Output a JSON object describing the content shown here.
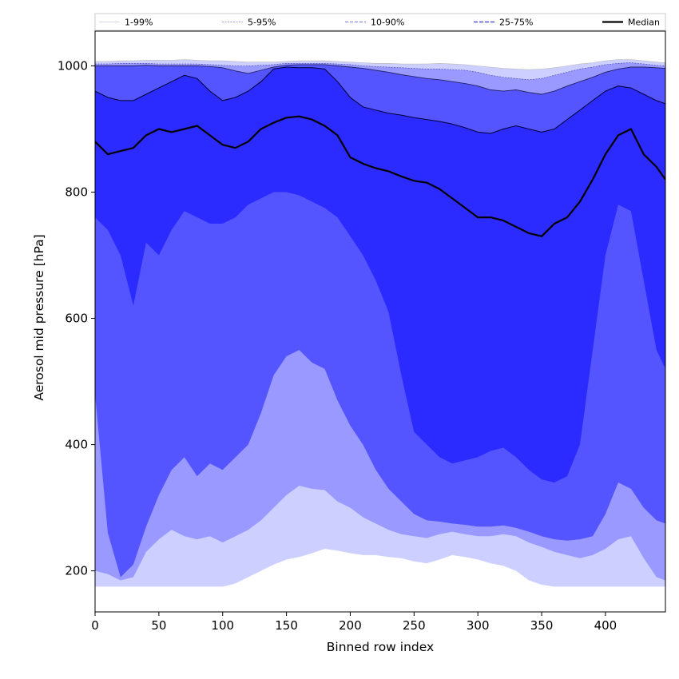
{
  "chart_data": {
    "type": "area",
    "xlabel": "Binned row index",
    "ylabel": "Aerosol mid pressure [hPa]",
    "xlim": [
      0,
      447
    ],
    "ylim": [
      135,
      1055
    ],
    "x_ticks": [
      0,
      50,
      100,
      150,
      200,
      250,
      300,
      350,
      400
    ],
    "y_ticks": [
      200,
      400,
      600,
      800,
      1000
    ],
    "grid": false,
    "legend_position": "top",
    "x": [
      0,
      10,
      20,
      30,
      40,
      50,
      60,
      70,
      80,
      90,
      100,
      110,
      120,
      130,
      140,
      150,
      160,
      170,
      180,
      190,
      200,
      210,
      220,
      230,
      240,
      250,
      260,
      270,
      280,
      290,
      300,
      310,
      320,
      330,
      340,
      350,
      360,
      370,
      380,
      390,
      400,
      410,
      420,
      430,
      440,
      447
    ],
    "series": [
      {
        "name": "1-99%",
        "color": "#cccfff",
        "lower": [
          175,
          175,
          175,
          175,
          175,
          175,
          175,
          175,
          175,
          175,
          175,
          180,
          190,
          200,
          210,
          218,
          222,
          228,
          235,
          232,
          228,
          225,
          225,
          222,
          220,
          215,
          212,
          218,
          225,
          222,
          218,
          212,
          208,
          200,
          185,
          178,
          175,
          175,
          175,
          175,
          175,
          175,
          175,
          175,
          175,
          175
        ],
        "upper": [
          1007,
          1007,
          1008,
          1008,
          1009,
          1009,
          1009,
          1010,
          1009,
          1008,
          1008,
          1007,
          1006,
          1006,
          1006,
          1007,
          1008,
          1008,
          1008,
          1007,
          1006,
          1005,
          1004,
          1004,
          1003,
          1003,
          1003,
          1004,
          1003,
          1002,
          1000,
          998,
          996,
          995,
          994,
          995,
          997,
          1000,
          1003,
          1005,
          1008,
          1010,
          1010,
          1008,
          1006,
          1005
        ]
      },
      {
        "name": "5-95%",
        "color": "#9999ff",
        "lower": [
          200,
          195,
          185,
          190,
          230,
          250,
          265,
          255,
          250,
          255,
          245,
          255,
          265,
          280,
          300,
          320,
          335,
          330,
          328,
          310,
          300,
          285,
          275,
          265,
          258,
          255,
          252,
          258,
          262,
          258,
          255,
          255,
          258,
          255,
          245,
          238,
          230,
          225,
          220,
          225,
          235,
          250,
          255,
          220,
          190,
          185
        ],
        "upper": [
          1003,
          1003,
          1004,
          1004,
          1004,
          1003,
          1003,
          1003,
          1003,
          1002,
          1001,
          1000,
          1000,
          1001,
          1002,
          1004,
          1004,
          1004,
          1004,
          1003,
          1002,
          1000,
          999,
          998,
          997,
          996,
          995,
          995,
          994,
          993,
          990,
          985,
          982,
          980,
          978,
          980,
          985,
          990,
          995,
          998,
          1002,
          1004,
          1005,
          1003,
          1001,
          1000
        ]
      },
      {
        "name": "10-90%",
        "color": "#5555ff",
        "lower": [
          480,
          260,
          190,
          210,
          270,
          320,
          360,
          380,
          350,
          370,
          360,
          380,
          400,
          450,
          510,
          540,
          550,
          530,
          520,
          470,
          430,
          400,
          360,
          330,
          310,
          290,
          280,
          278,
          275,
          273,
          270,
          270,
          272,
          268,
          262,
          255,
          250,
          248,
          250,
          255,
          290,
          340,
          330,
          300,
          280,
          275
        ],
        "upper": [
          1000,
          1000,
          1000,
          1000,
          1001,
          1000,
          1000,
          1000,
          1000,
          999,
          997,
          992,
          988,
          993,
          998,
          1001,
          1002,
          1002,
          1002,
          1000,
          998,
          996,
          993,
          990,
          986,
          983,
          980,
          978,
          975,
          972,
          968,
          962,
          960,
          962,
          958,
          955,
          960,
          968,
          975,
          982,
          990,
          995,
          998,
          998,
          997,
          996
        ]
      },
      {
        "name": "25-75%",
        "color": "#2b2bff",
        "lower": [
          760,
          740,
          700,
          620,
          720,
          700,
          740,
          770,
          760,
          750,
          750,
          760,
          780,
          790,
          800,
          800,
          795,
          785,
          775,
          760,
          730,
          700,
          660,
          610,
          510,
          420,
          400,
          380,
          370,
          375,
          380,
          390,
          395,
          380,
          360,
          345,
          340,
          350,
          400,
          550,
          700,
          780,
          770,
          660,
          550,
          520
        ],
        "upper": [
          960,
          950,
          945,
          945,
          955,
          965,
          975,
          985,
          980,
          960,
          945,
          950,
          960,
          975,
          995,
          998,
          997,
          997,
          995,
          975,
          950,
          935,
          930,
          925,
          922,
          918,
          915,
          912,
          908,
          902,
          895,
          893,
          900,
          905,
          900,
          895,
          900,
          915,
          930,
          945,
          960,
          968,
          965,
          955,
          945,
          940
        ]
      },
      {
        "name": "Median",
        "color": "#000000",
        "values": [
          880,
          860,
          865,
          870,
          890,
          900,
          895,
          900,
          905,
          890,
          875,
          870,
          880,
          900,
          910,
          918,
          920,
          915,
          905,
          890,
          855,
          845,
          838,
          833,
          825,
          818,
          815,
          805,
          790,
          775,
          760,
          760,
          755,
          745,
          735,
          730,
          750,
          760,
          785,
          820,
          860,
          890,
          900,
          860,
          840,
          820
        ]
      }
    ]
  }
}
